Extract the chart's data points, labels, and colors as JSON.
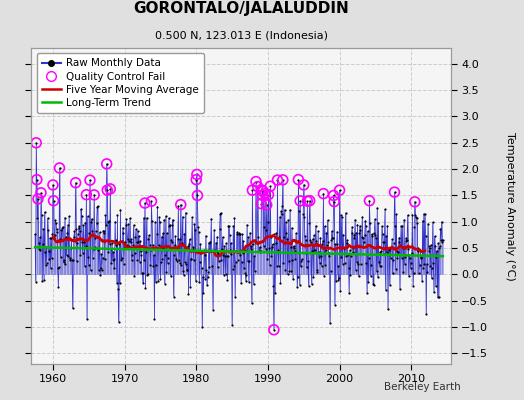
{
  "title": "GORONTALO/JALALUDDIN",
  "subtitle": "0.500 N, 123.013 E (Indonesia)",
  "ylabel": "Temperature Anomaly (°C)",
  "source_label": "Berkeley Earth",
  "ylim": [
    -1.7,
    4.3
  ],
  "xlim": [
    1957.0,
    2015.5
  ],
  "yticks": [
    -1.5,
    -1,
    -0.5,
    0,
    0.5,
    1,
    1.5,
    2,
    2.5,
    3,
    3.5,
    4
  ],
  "xticks": [
    1960,
    1970,
    1980,
    1990,
    2000,
    2010
  ],
  "bg_color": "#e0e0e0",
  "plot_bg": "#f5f5f5",
  "line_color_raw": "#3333cc",
  "line_color_mavg": "#cc0000",
  "line_color_trend": "#00bb00",
  "qc_color": "#ff00ff",
  "seed": 17,
  "start_year": 1957.5,
  "n_months": 684,
  "noise_std": 0.42,
  "baseline": 0.35,
  "trend_per_year": -0.003
}
